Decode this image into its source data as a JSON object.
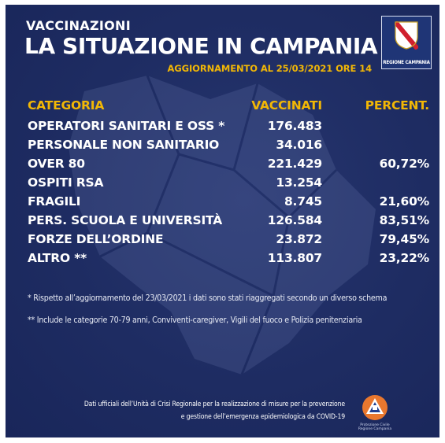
{
  "header": {
    "kicker": "VACCINAZIONI",
    "title": "LA SITUAZIONE IN CAMPANIA",
    "update": "AGGIORNAMENTO AL 25/03/2021 ORE 14",
    "logo_text": "REGIONE CAMPANIA"
  },
  "table": {
    "headers": {
      "category": "CATEGORIA",
      "vaccinated": "VACCINATI",
      "percent": "PERCENT."
    },
    "rows": [
      {
        "category": "OPERATORI SANITARI E OSS *",
        "vaccinated": "176.483",
        "percent": ""
      },
      {
        "category": "PERSONALE NON SANITARIO",
        "vaccinated": "34.016",
        "percent": ""
      },
      {
        "category": "OVER 80",
        "vaccinated": "221.429",
        "percent": "60,72%"
      },
      {
        "category": "OSPITI RSA",
        "vaccinated": "13.254",
        "percent": ""
      },
      {
        "category": "FRAGILI",
        "vaccinated": "8.745",
        "percent": "21,60%"
      },
      {
        "category": "PERS.  SCUOLA E UNIVERSITÀ",
        "vaccinated": "126.584",
        "percent": "83,51%"
      },
      {
        "category": "FORZE DELL’ORDINE",
        "vaccinated": "23.872",
        "percent": "79,45%"
      },
      {
        "category": "ALTRO **",
        "vaccinated": "113.807",
        "percent": "23,22%"
      }
    ]
  },
  "notes": {
    "note1": "* Rispetto all’aggiornamento del 23/03/2021 i dati sono stati riaggregati secondo un diverso schema",
    "note2": "** Include le categorie 70-79 anni, Conviventi-caregiver, Vigili del fuoco e Polizia penitenziaria"
  },
  "footer": {
    "line1": "Dati ufficiali dell’Unità di Crisi Regionale per la realizzazione di misure per la  prevenzione",
    "line2": "e gestione dell’emergenza epidemiologica da COVID-19",
    "pc_logo_text_1": "Protezione Civile",
    "pc_logo_text_2": "Regione Campania"
  },
  "colors": {
    "background": "#1e2c62",
    "accent": "#f2b705",
    "text": "#ffffff"
  },
  "icons": {
    "region_logo": "regione-campania-shield-icon",
    "civil_protection": "protezione-civile-icon"
  }
}
